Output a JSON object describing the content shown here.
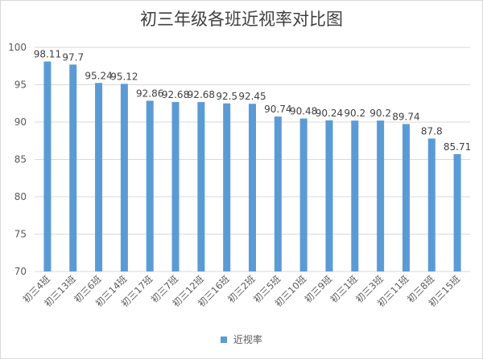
{
  "chart_data": {
    "type": "bar",
    "title": "初三年级各班近视率对比图",
    "categories": [
      "初三4班",
      "初三13班",
      "初三6班",
      "初三14班",
      "初三17班",
      "初三7班",
      "初三12班",
      "初三16班",
      "初三2班",
      "初三5班",
      "初三10班",
      "初三9班",
      "初三1班",
      "初三3班",
      "初三11班",
      "初三8班",
      "初三15班"
    ],
    "series": [
      {
        "name": "近视率",
        "values": [
          98.11,
          97.7,
          95.24,
          95.12,
          92.86,
          92.68,
          92.68,
          92.5,
          92.45,
          90.74,
          90.48,
          90.24,
          90.2,
          90.2,
          89.74,
          87.8,
          85.71
        ],
        "labels": [
          "98.11",
          "97.7",
          "95.24",
          "95.12",
          "92.86",
          "92.68",
          "92.68",
          "92.5",
          "92.45",
          "90.74",
          "90.48",
          "90.24",
          "90.2",
          "90.2",
          "89.74",
          "87.8",
          "85.71"
        ]
      }
    ],
    "yticks": [
      "70",
      "75",
      "80",
      "85",
      "90",
      "95",
      "100"
    ],
    "ylim": [
      70,
      100
    ],
    "grid": true,
    "legend": "bottom",
    "bar_color": "#5b9bd5",
    "grid_color": "#d9d9d9"
  }
}
